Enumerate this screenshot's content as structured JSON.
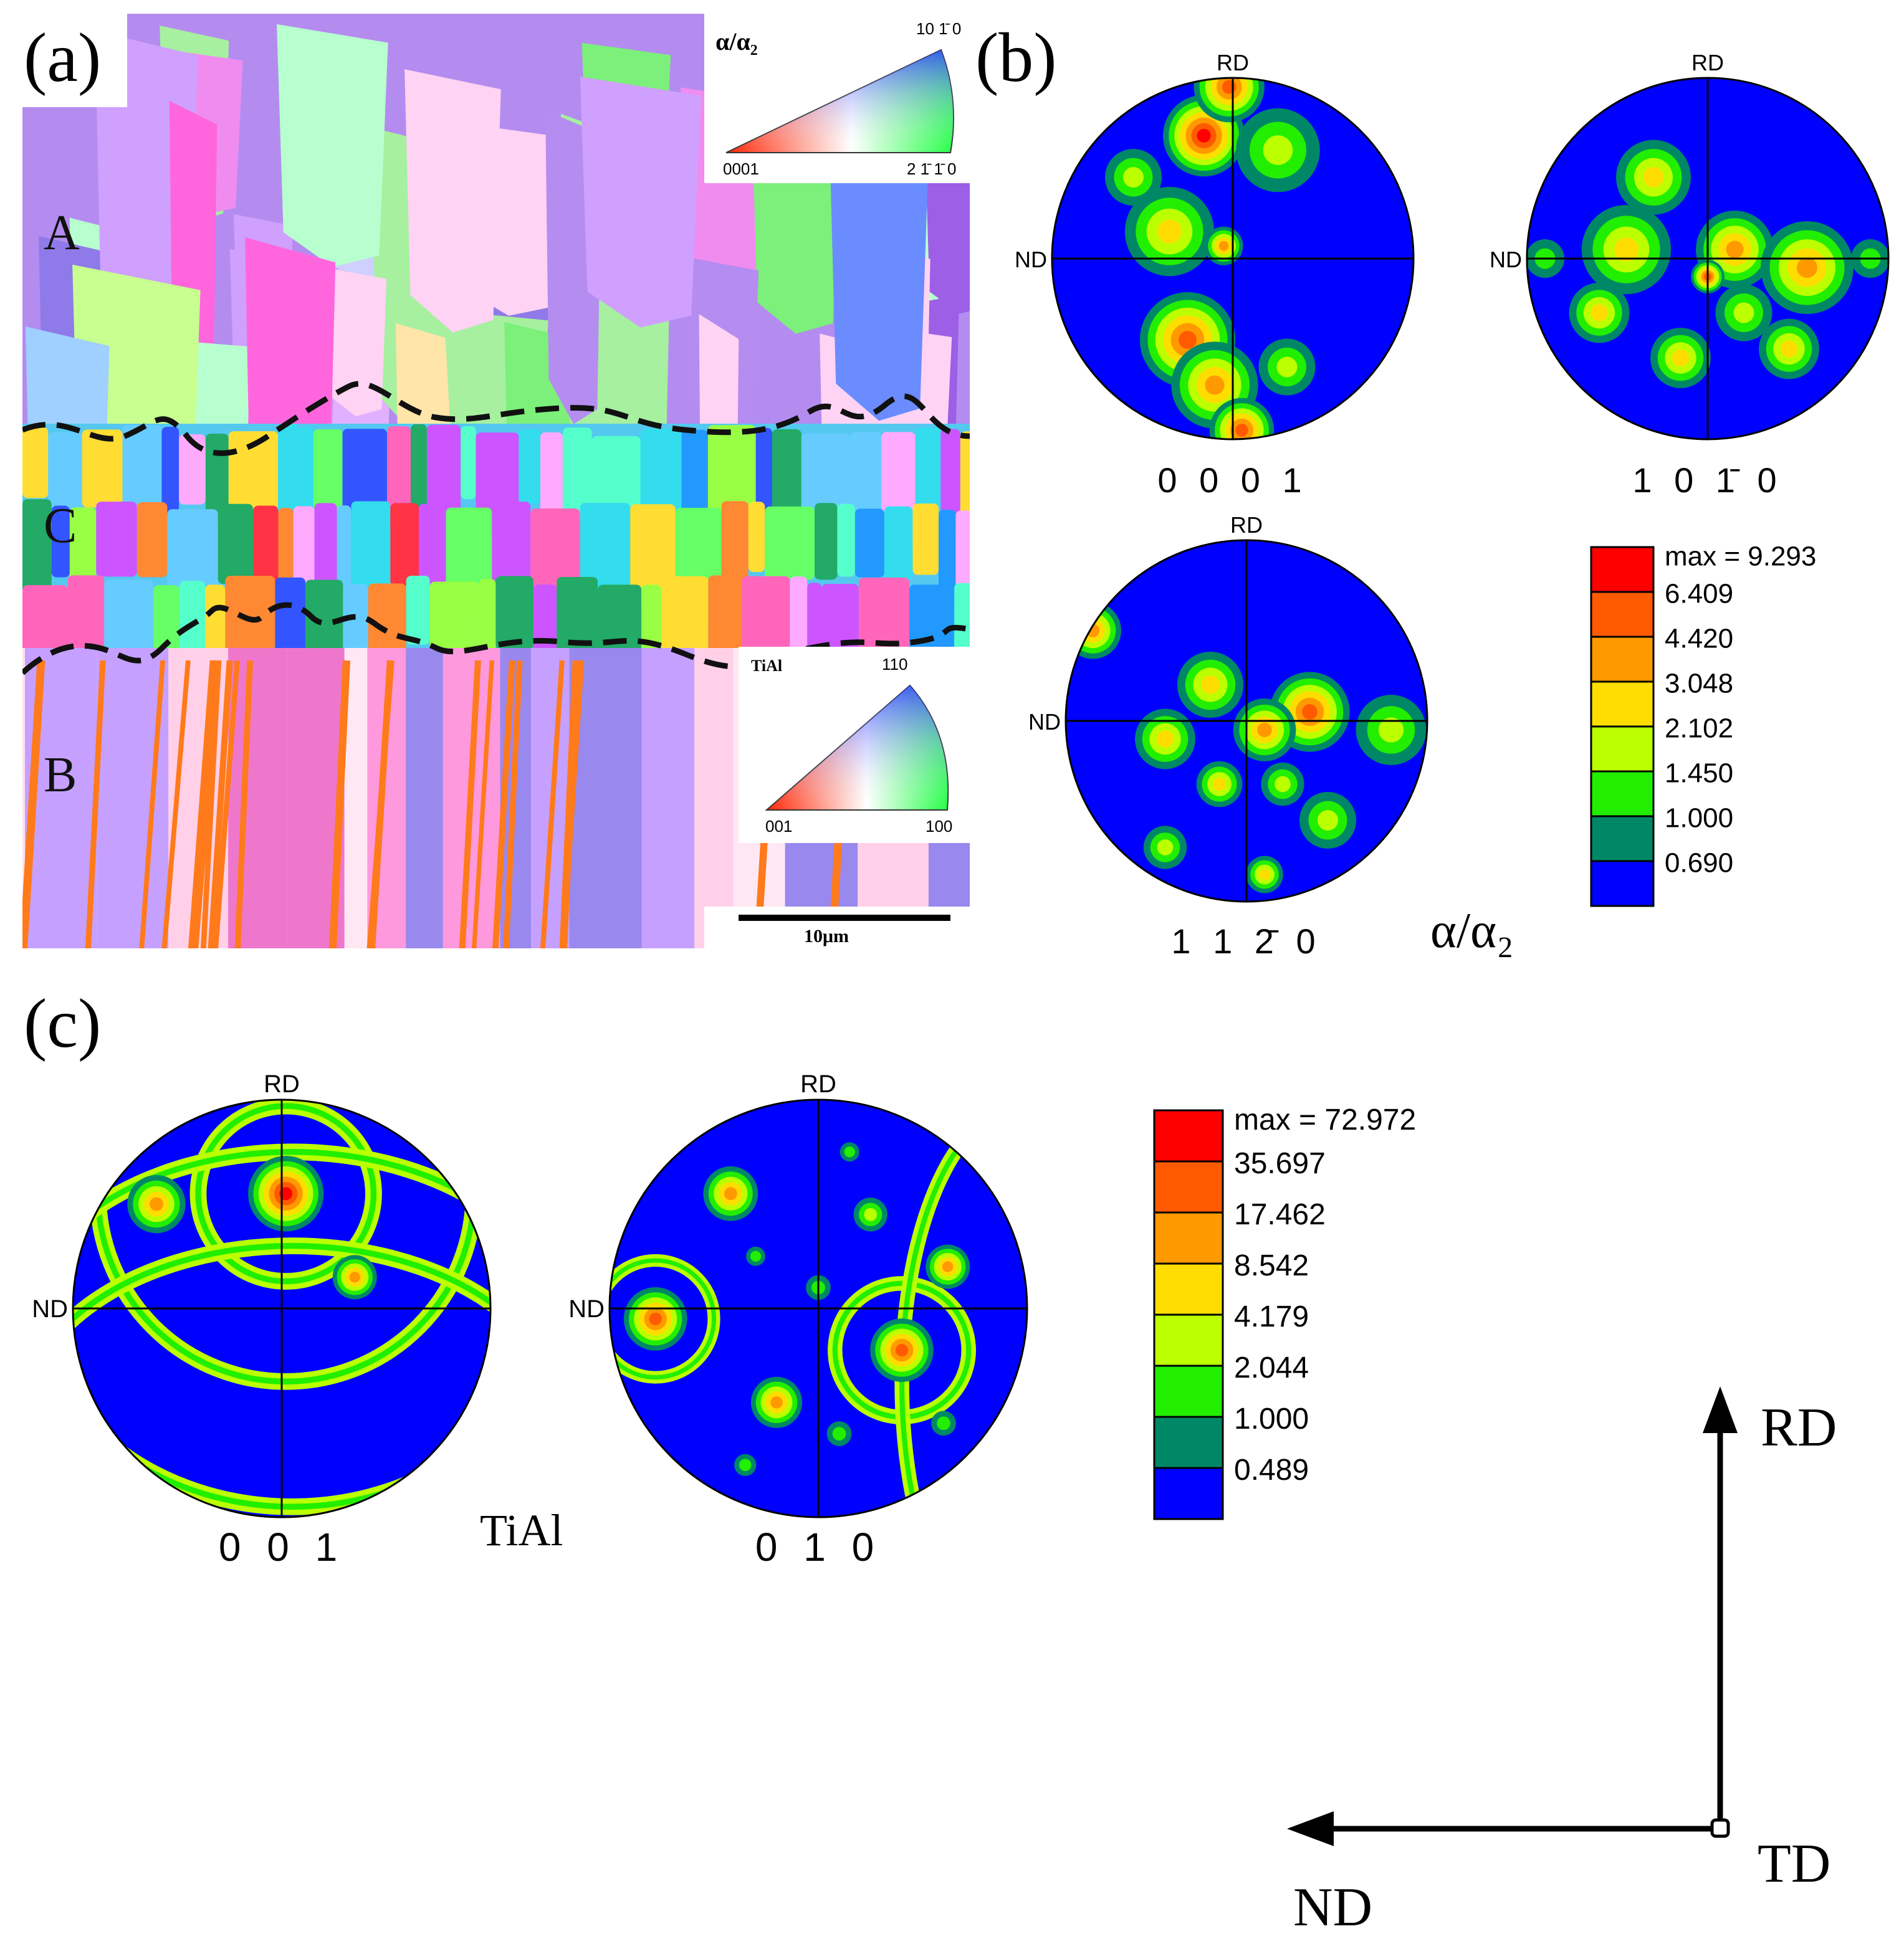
{
  "panel_labels": {
    "a": "(a)",
    "b": "(b)",
    "c": "(c)"
  },
  "ebsd_map": {
    "zone_labels": [
      "A",
      "C",
      "B"
    ],
    "alpha_key": {
      "phase": "α/α₂",
      "top": "10 1̄ 0",
      "left": "0001",
      "right": "2 1̄ 1̄ 0"
    },
    "tial_key": {
      "phase": "TiAl",
      "top": "110",
      "left": "001",
      "right": "100"
    },
    "scale_bar": "10μm"
  },
  "pole_figure_axes": {
    "top": "RD",
    "left": "ND"
  },
  "alpha_pole_figures": {
    "phase": "α/α₂",
    "figures": [
      {
        "label": "0 0 0 1"
      },
      {
        "label": "1 0 1̄ 0"
      },
      {
        "label": "1 1 2̄ 0"
      }
    ],
    "legend": [
      "max = 9.293",
      "6.409",
      "4.420",
      "3.048",
      "2.102",
      "1.450",
      "1.000",
      "0.690"
    ]
  },
  "tial_pole_figures": {
    "phase": "TiAl",
    "figures": [
      {
        "label": "0 0 1"
      },
      {
        "label": "0 1 0"
      }
    ],
    "legend": [
      "max = 72.972",
      "35.697",
      "17.462",
      "8.542",
      "4.179",
      "2.044",
      "1.000",
      "0.489"
    ]
  },
  "level_colors": [
    "#ff0000",
    "#ff5a00",
    "#ff9900",
    "#ffdd00",
    "#bbff00",
    "#22ee00",
    "#008866",
    "#0000ff"
  ],
  "coordinate_system": {
    "up": "RD",
    "left": "ND",
    "origin": "TD"
  }
}
